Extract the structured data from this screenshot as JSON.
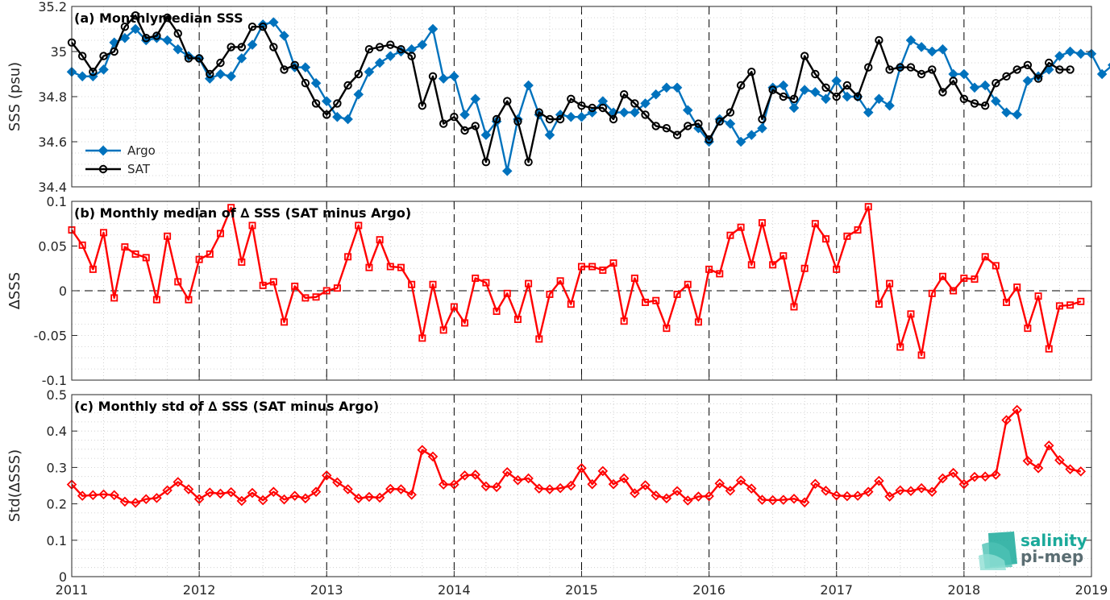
{
  "chart_data": [
    {
      "type": "line",
      "title": "(a) Monthlymedian SSS",
      "xlabel": "",
      "ylabel": "SSS (psu)",
      "ylim": [
        34.4,
        35.2
      ],
      "yticks": [
        34.4,
        34.6,
        34.8,
        35,
        35.2
      ],
      "xlim": [
        2011,
        2019
      ],
      "grid": true,
      "legend_position": "bottom-left",
      "x_start_year": 2011,
      "x_step_years": 0.08333,
      "series": [
        {
          "name": "Argo",
          "color": "#0072bd",
          "marker": "diamond",
          "values": [
            34.91,
            34.89,
            34.89,
            34.92,
            35.04,
            35.06,
            35.1,
            35.05,
            35.06,
            35.05,
            35.01,
            34.98,
            34.97,
            34.88,
            34.9,
            34.89,
            34.97,
            35.03,
            35.12,
            35.13,
            35.07,
            34.93,
            34.93,
            34.86,
            34.78,
            34.71,
            34.7,
            34.81,
            34.91,
            34.95,
            34.98,
            35.0,
            35.01,
            35.03,
            35.1,
            34.88,
            34.89,
            34.72,
            34.79,
            34.63,
            34.69,
            34.47,
            34.7,
            34.85,
            34.72,
            34.63,
            34.72,
            34.71,
            34.71,
            34.73,
            34.78,
            34.73,
            34.73,
            34.73,
            34.77,
            34.81,
            34.84,
            34.84,
            34.74,
            34.66,
            34.6,
            34.7,
            34.68,
            34.6,
            34.63,
            34.66,
            34.84,
            34.85,
            34.75,
            34.83,
            34.82,
            34.79,
            34.87,
            34.8,
            34.8,
            34.73,
            34.79,
            34.76,
            34.93,
            35.05,
            35.02,
            35.0,
            35.01,
            34.9,
            34.9,
            34.84,
            34.85,
            34.78,
            34.73,
            34.72,
            34.87,
            34.89,
            34.92,
            34.98,
            35.0,
            34.99,
            34.99,
            34.9,
            34.94
          ]
        },
        {
          "name": "SAT",
          "color": "#000000",
          "marker": "circle",
          "values": [
            35.04,
            34.98,
            34.91,
            34.98,
            35.0,
            35.11,
            35.16,
            35.06,
            35.07,
            35.15,
            35.08,
            34.97,
            34.97,
            34.9,
            34.95,
            35.02,
            35.02,
            35.11,
            35.11,
            35.02,
            34.92,
            34.94,
            34.86,
            34.77,
            34.72,
            34.77,
            34.85,
            34.9,
            35.01,
            35.02,
            35.03,
            35.01,
            34.98,
            34.76,
            34.89,
            34.68,
            34.71,
            34.65,
            34.67,
            34.51,
            34.7,
            34.78,
            34.69,
            34.51,
            34.73,
            34.7,
            34.7,
            34.79,
            34.76,
            34.75,
            34.75,
            34.7,
            34.81,
            34.77,
            34.72,
            34.67,
            34.66,
            34.63,
            34.67,
            34.68,
            34.61,
            34.69,
            34.73,
            34.85,
            34.91,
            34.7,
            34.83,
            34.8,
            34.79,
            34.98,
            34.9,
            34.84,
            34.8,
            34.85,
            34.8,
            34.93,
            35.05,
            34.92,
            34.93,
            34.93,
            34.9,
            34.92,
            34.82,
            34.87,
            34.79,
            34.77,
            34.76,
            34.86,
            34.89,
            34.92,
            34.94,
            34.88,
            34.95,
            34.92,
            34.92
          ]
        }
      ]
    },
    {
      "type": "line",
      "title": "(b) Monthly median of ∆ SSS (SAT minus Argo)",
      "xlabel": "",
      "ylabel": "∆SSS",
      "ylim": [
        -0.1,
        0.1
      ],
      "yticks": [
        -0.1,
        -0.05,
        0,
        0.05,
        0.1
      ],
      "xlim": [
        2011,
        2019
      ],
      "grid": true,
      "reference_line": 0,
      "x_start_year": 2011,
      "x_step_years": 0.08333,
      "series": [
        {
          "name": "",
          "color": "#ff0000",
          "marker": "square",
          "values": [
            0.068,
            0.051,
            0.024,
            0.065,
            -0.008,
            0.049,
            0.041,
            0.037,
            -0.01,
            0.061,
            0.01,
            -0.01,
            0.035,
            0.041,
            0.064,
            0.093,
            0.032,
            0.073,
            0.006,
            0.01,
            -0.035,
            0.005,
            -0.008,
            -0.007,
            0.0,
            0.003,
            0.038,
            0.073,
            0.026,
            0.057,
            0.027,
            0.026,
            0.007,
            -0.053,
            0.007,
            -0.044,
            -0.018,
            -0.036,
            0.014,
            0.009,
            -0.023,
            -0.003,
            -0.032,
            0.008,
            -0.054,
            -0.004,
            0.011,
            -0.015,
            0.027,
            0.027,
            0.023,
            0.031,
            -0.034,
            0.014,
            -0.013,
            -0.011,
            -0.042,
            -0.004,
            0.007,
            -0.035,
            0.024,
            0.019,
            0.062,
            0.071,
            0.029,
            0.076,
            0.029,
            0.039,
            -0.018,
            0.025,
            0.075,
            0.058,
            0.024,
            0.061,
            0.068,
            0.094,
            -0.015,
            0.008,
            -0.063,
            -0.026,
            -0.072,
            -0.003,
            0.016,
            0.0,
            0.014,
            0.013,
            0.038,
            0.028,
            -0.013,
            0.004,
            -0.042,
            -0.006,
            -0.065,
            -0.017,
            -0.016,
            -0.012
          ]
        }
      ]
    },
    {
      "type": "line",
      "title": "(c) Monthly std of ∆ SSS (SAT minus Argo)",
      "xlabel": "",
      "ylabel": "Std(∆SSS)",
      "ylim": [
        0,
        0.5
      ],
      "yticks": [
        0,
        0.1,
        0.2,
        0.3,
        0.4,
        0.5
      ],
      "xlim": [
        2011,
        2019
      ],
      "xticks": [
        2011,
        2012,
        2013,
        2014,
        2015,
        2016,
        2017,
        2018,
        2019
      ],
      "grid": true,
      "x_start_year": 2011,
      "x_step_years": 0.08333,
      "series": [
        {
          "name": "",
          "color": "#ff0000",
          "marker": "diamond",
          "values": [
            0.253,
            0.222,
            0.224,
            0.226,
            0.224,
            0.206,
            0.203,
            0.213,
            0.216,
            0.237,
            0.26,
            0.24,
            0.213,
            0.231,
            0.228,
            0.232,
            0.208,
            0.23,
            0.21,
            0.233,
            0.212,
            0.222,
            0.215,
            0.233,
            0.278,
            0.259,
            0.24,
            0.215,
            0.219,
            0.217,
            0.241,
            0.24,
            0.225,
            0.348,
            0.33,
            0.253,
            0.253,
            0.278,
            0.28,
            0.248,
            0.246,
            0.287,
            0.265,
            0.27,
            0.242,
            0.24,
            0.243,
            0.25,
            0.298,
            0.254,
            0.29,
            0.254,
            0.27,
            0.229,
            0.251,
            0.223,
            0.215,
            0.235,
            0.209,
            0.22,
            0.221,
            0.256,
            0.236,
            0.264,
            0.242,
            0.211,
            0.21,
            0.211,
            0.214,
            0.204,
            0.255,
            0.236,
            0.223,
            0.221,
            0.222,
            0.233,
            0.263,
            0.22,
            0.237,
            0.235,
            0.243,
            0.233,
            0.27,
            0.285,
            0.254,
            0.274,
            0.275,
            0.28,
            0.43,
            0.458,
            0.318,
            0.298,
            0.36,
            0.32,
            0.295,
            0.289
          ]
        }
      ]
    }
  ],
  "logo": {
    "line1": "salinity",
    "line2": "pi-mep",
    "icon": "salinity-wave-icon",
    "color_primary": "#1aa99a",
    "color_secondary": "#5a6d72"
  }
}
